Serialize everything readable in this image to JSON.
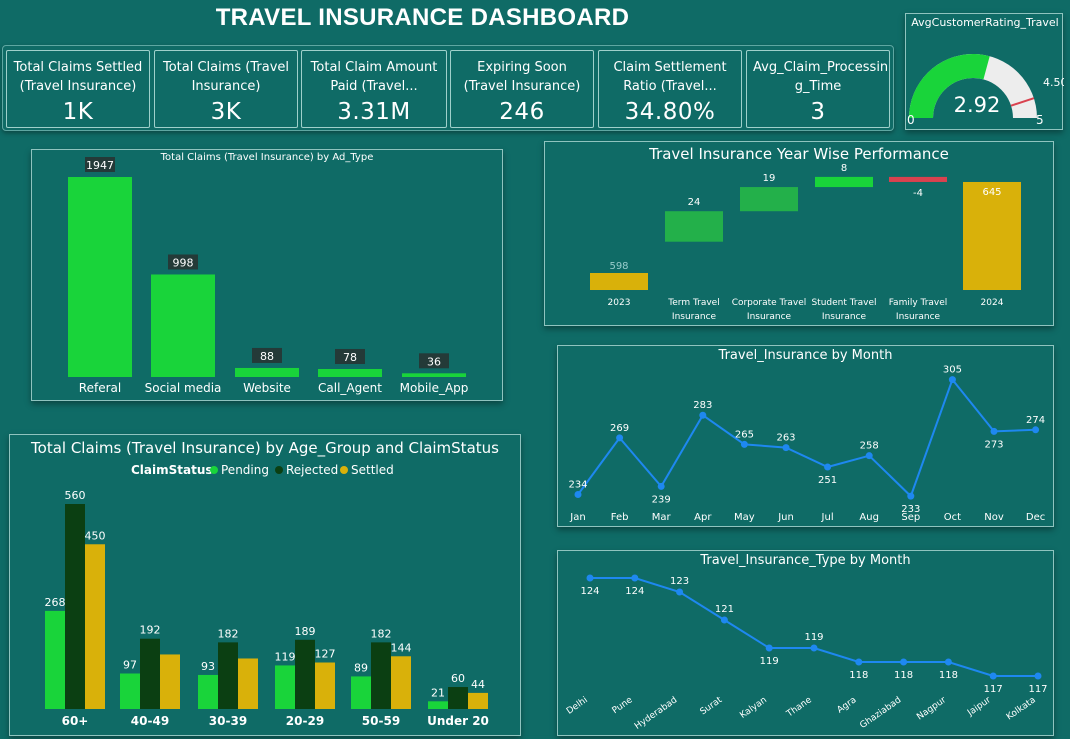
{
  "header": {
    "title": "TRAVEL INSURANCE DASHBOARD"
  },
  "colors": {
    "background": "#0f6b66",
    "bright_green": "#19d43a",
    "green": "#23b04a",
    "dark_green": "#0b3f12",
    "gold": "#d9b10a",
    "red": "#d9424f",
    "line_blue": "#1e88f0"
  },
  "kpis": [
    {
      "label": "Total Claims Settled (Travel Insurance)",
      "value": "1K"
    },
    {
      "label": "Total Claims (Travel Insurance)",
      "value": "3K"
    },
    {
      "label": "Total Claim Amount Paid (Travel...",
      "value": "3.31M"
    },
    {
      "label": "Expiring Soon (Travel Insurance)",
      "value": "246"
    },
    {
      "label": "Claim Settlement Ratio (Travel...",
      "value": "34.80%"
    },
    {
      "label": "Avg_Claim_Processin g_Time",
      "value": "3"
    }
  ],
  "chart_data": [
    {
      "id": "gauge",
      "type": "gauge",
      "title": "AvgCustomerRating_Travel",
      "value": 2.92,
      "value_label": "2.92",
      "min": 0,
      "min_label": "0",
      "max": 5,
      "max_label": "5",
      "target": 4.5,
      "target_label": "4.50"
    },
    {
      "id": "ad_type",
      "type": "bar",
      "title": "Total Claims (Travel Insurance) by Ad_Type",
      "categories": [
        "Referal",
        "Social media",
        "Website",
        "Call_Agent",
        "Mobile_App"
      ],
      "values": [
        1947,
        998,
        88,
        78,
        36
      ],
      "value_labels": [
        "1947",
        "998",
        "88",
        "78",
        "36"
      ],
      "ylim": [
        0,
        1947
      ]
    },
    {
      "id": "waterfall",
      "type": "bar",
      "subtype": "waterfall",
      "title": "Travel Insurance Year Wise Performance",
      "categories": [
        "2023",
        "Term Travel Insurance",
        "Corporate Travel Insurance",
        "Student Travel Insurance",
        "Family Travel Insurance",
        "2024"
      ],
      "values": [
        598,
        24,
        19,
        8,
        -4,
        645
      ],
      "value_labels": [
        "598",
        "24",
        "19",
        "8",
        "-4",
        "645"
      ],
      "kinds": [
        "total",
        "increase",
        "increase",
        "increase",
        "decrease",
        "total"
      ]
    },
    {
      "id": "age_group",
      "type": "bar",
      "title": "Total Claims (Travel Insurance) by Age_Group and ClaimStatus",
      "legend_title": "ClaimStatus",
      "categories": [
        "60+",
        "40-49",
        "30-39",
        "20-29",
        "50-59",
        "Under 20"
      ],
      "series": [
        {
          "name": "Pending",
          "values": [
            268,
            97,
            93,
            119,
            89,
            21
          ],
          "value_labels": [
            "268",
            "97",
            "93",
            "119",
            "89",
            "21"
          ],
          "color": "#19d43a"
        },
        {
          "name": "Rejected",
          "values": [
            560,
            192,
            182,
            189,
            182,
            60
          ],
          "value_labels": [
            "560",
            "192",
            "182",
            "189",
            "182",
            "60"
          ],
          "color": "#0b3f12"
        },
        {
          "name": "Settled",
          "values": [
            450,
            149,
            138,
            127,
            144,
            44
          ],
          "value_labels": [
            "450",
            "",
            "",
            "127",
            "144",
            "44"
          ],
          "color": "#d9b10a"
        }
      ],
      "ylim": [
        0,
        560
      ]
    },
    {
      "id": "month",
      "type": "line",
      "title": "Travel_Insurance by Month",
      "categories": [
        "Jan",
        "Feb",
        "Mar",
        "Apr",
        "May",
        "Jun",
        "Jul",
        "Aug",
        "Sep",
        "Oct",
        "Nov",
        "Dec"
      ],
      "values": [
        234,
        269,
        239,
        283,
        265,
        263,
        251,
        258,
        233,
        305,
        273,
        274
      ],
      "value_labels": [
        "234",
        "269",
        "239",
        "283",
        "265",
        "263",
        "251",
        "258",
        "233",
        "305",
        "273",
        "274"
      ],
      "ylim": [
        230,
        306
      ]
    },
    {
      "id": "type_month",
      "type": "line",
      "title": "Travel_Insurance_Type by Month",
      "categories": [
        "Delhi",
        "Pune",
        "Hyderabad",
        "Surat",
        "Kalyan",
        "Thane",
        "Agra",
        "Ghaziabad",
        "Nagpur",
        "Jaipur",
        "Kolkata"
      ],
      "values": [
        124,
        124,
        123,
        121,
        119,
        119,
        118,
        118,
        118,
        117,
        117
      ],
      "value_labels": [
        "124",
        "124",
        "123",
        "121",
        "119",
        "119",
        "118",
        "118",
        "118",
        "117",
        "117"
      ],
      "ylim": [
        116.5,
        124
      ]
    }
  ]
}
